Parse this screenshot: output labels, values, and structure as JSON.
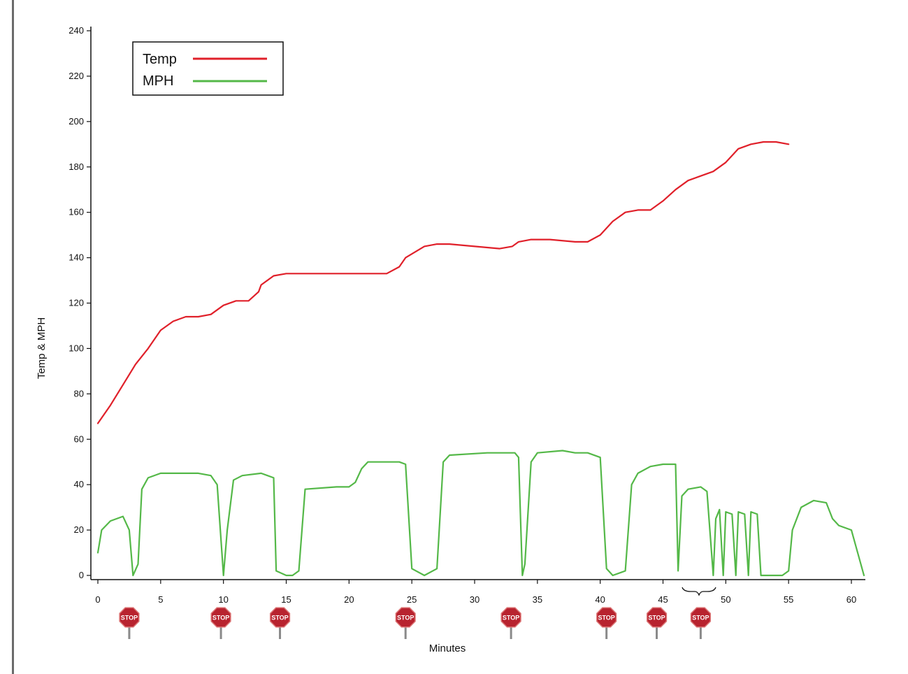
{
  "chart_data": {
    "type": "line",
    "title": "",
    "xlabel": "Minutes",
    "ylabel": "Temp & MPH",
    "xlim": [
      0,
      60
    ],
    "ylim": [
      0,
      240
    ],
    "x_ticks": [
      "0",
      "5",
      "10",
      "15",
      "20",
      "25",
      "30",
      "35",
      "40",
      "45",
      "50",
      "55",
      "60"
    ],
    "y_ticks": [
      "0",
      "20",
      "40",
      "60",
      "80",
      "100",
      "120",
      "140",
      "160",
      "180",
      "200",
      "220",
      "240"
    ],
    "grid": false,
    "legend_position": "top-left",
    "series": [
      {
        "name": "Temp",
        "color": "#e0202a",
        "points": [
          [
            0,
            67
          ],
          [
            1,
            75
          ],
          [
            2,
            84
          ],
          [
            3,
            93
          ],
          [
            4,
            100
          ],
          [
            5,
            108
          ],
          [
            6,
            112
          ],
          [
            7,
            114
          ],
          [
            8,
            114
          ],
          [
            9,
            115
          ],
          [
            10,
            119
          ],
          [
            11,
            121
          ],
          [
            12,
            121
          ],
          [
            12.8,
            125
          ],
          [
            13,
            128
          ],
          [
            14,
            132
          ],
          [
            15,
            133
          ],
          [
            16,
            133
          ],
          [
            20,
            133
          ],
          [
            23,
            133
          ],
          [
            24,
            136
          ],
          [
            24.5,
            140
          ],
          [
            26,
            145
          ],
          [
            27,
            146
          ],
          [
            28,
            146
          ],
          [
            30,
            145
          ],
          [
            32,
            144
          ],
          [
            33,
            145
          ],
          [
            33.5,
            147
          ],
          [
            34.5,
            148
          ],
          [
            36,
            148
          ],
          [
            38,
            147
          ],
          [
            39,
            147
          ],
          [
            40,
            150
          ],
          [
            41,
            156
          ],
          [
            42,
            160
          ],
          [
            43,
            161
          ],
          [
            44,
            161
          ],
          [
            45,
            165
          ],
          [
            46,
            170
          ],
          [
            47,
            174
          ],
          [
            48,
            176
          ],
          [
            49,
            178
          ],
          [
            50,
            182
          ],
          [
            51,
            188
          ],
          [
            52,
            190
          ],
          [
            53,
            191
          ],
          [
            54,
            191
          ],
          [
            55,
            190
          ]
        ]
      },
      {
        "name": "MPH",
        "color": "#54b848",
        "points": [
          [
            0,
            10
          ],
          [
            0.3,
            20
          ],
          [
            1,
            24
          ],
          [
            2,
            26
          ],
          [
            2.5,
            20
          ],
          [
            2.8,
            0
          ],
          [
            3.2,
            5
          ],
          [
            3.5,
            38
          ],
          [
            4,
            43
          ],
          [
            5,
            45
          ],
          [
            7,
            45
          ],
          [
            8,
            45
          ],
          [
            9,
            44
          ],
          [
            9.5,
            40
          ],
          [
            10,
            0
          ],
          [
            10.3,
            20
          ],
          [
            10.8,
            42
          ],
          [
            11.5,
            44
          ],
          [
            13,
            45
          ],
          [
            14,
            43
          ],
          [
            14.2,
            2
          ],
          [
            15,
            0
          ],
          [
            15.5,
            0
          ],
          [
            16,
            2
          ],
          [
            16.5,
            38
          ],
          [
            19,
            39
          ],
          [
            20,
            39
          ],
          [
            20.5,
            41
          ],
          [
            21,
            47
          ],
          [
            21.5,
            50
          ],
          [
            24,
            50
          ],
          [
            24.5,
            49
          ],
          [
            25,
            3
          ],
          [
            26,
            0
          ],
          [
            27,
            3
          ],
          [
            27.5,
            50
          ],
          [
            28,
            53
          ],
          [
            31,
            54
          ],
          [
            33.2,
            54
          ],
          [
            33.5,
            52
          ],
          [
            33.8,
            0
          ],
          [
            34,
            5
          ],
          [
            34.5,
            50
          ],
          [
            35,
            54
          ],
          [
            37,
            55
          ],
          [
            38,
            54
          ],
          [
            39,
            54
          ],
          [
            40,
            52
          ],
          [
            40.5,
            3
          ],
          [
            41,
            0
          ],
          [
            42,
            2
          ],
          [
            42.5,
            40
          ],
          [
            43,
            45
          ],
          [
            44,
            48
          ],
          [
            45,
            49
          ],
          [
            46,
            49
          ],
          [
            46.2,
            2
          ],
          [
            46.5,
            35
          ],
          [
            47,
            38
          ],
          [
            48,
            39
          ],
          [
            48.5,
            37
          ],
          [
            49,
            0
          ],
          [
            49.2,
            25
          ],
          [
            49.5,
            29
          ],
          [
            49.8,
            0
          ],
          [
            50,
            28
          ],
          [
            50.5,
            27
          ],
          [
            50.8,
            0
          ],
          [
            51,
            28
          ],
          [
            51.5,
            27
          ],
          [
            51.8,
            0
          ],
          [
            52,
            28
          ],
          [
            52.5,
            27
          ],
          [
            52.8,
            0
          ],
          [
            53.5,
            0
          ],
          [
            54.5,
            0
          ],
          [
            55,
            2
          ],
          [
            55.3,
            20
          ],
          [
            56,
            30
          ],
          [
            57,
            33
          ],
          [
            58,
            32
          ],
          [
            58.5,
            25
          ],
          [
            59,
            22
          ],
          [
            60,
            20
          ],
          [
            60.5,
            10
          ],
          [
            61,
            0
          ]
        ]
      }
    ]
  },
  "stop_sign_text": "STOP",
  "stop_markers_minutes": [
    2.5,
    9.8,
    14.5,
    24.5,
    32.9,
    40.5,
    44.5,
    48.0
  ]
}
